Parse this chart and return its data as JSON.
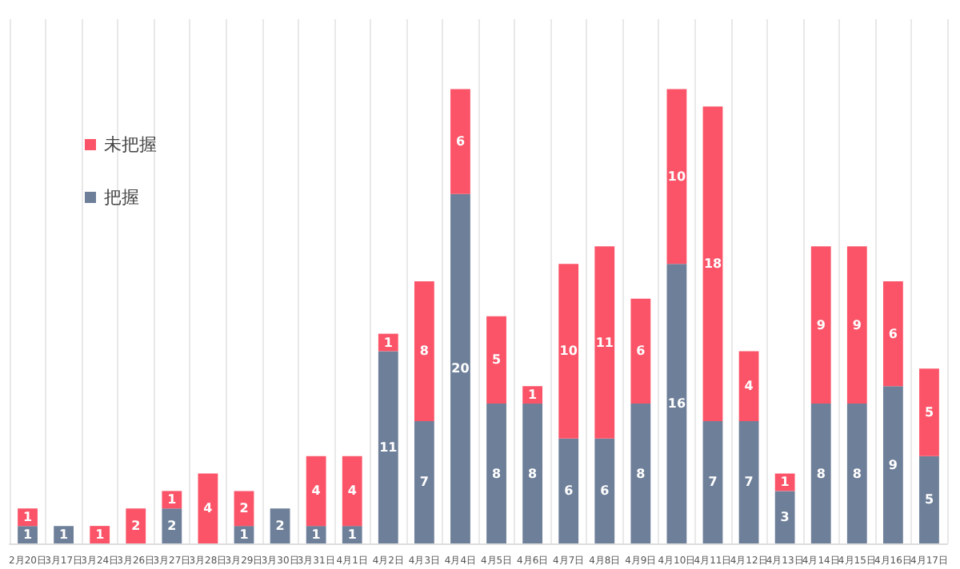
{
  "chart_data": {
    "type": "bar",
    "stacked": true,
    "data_labels": true,
    "grid": "x",
    "legend": "top left",
    "categories": [
      "2月20日",
      "3月17日",
      "3月24日",
      "3月26日",
      "3月27日",
      "3月28日",
      "3月29日",
      "3月30日",
      "3月31日",
      "4月1日",
      "4月2日",
      "4月3日",
      "4月4日",
      "4月5日",
      "4月6日",
      "4月7日",
      "4月8日",
      "4月9日",
      "4月10日",
      "4月11日",
      "4月12日",
      "4月13日",
      "4月14日",
      "4月15日",
      "4月16日",
      "4月17日"
    ],
    "series": [
      {
        "name": "把握",
        "color": "#6e7f99",
        "values": [
          1,
          1,
          null,
          null,
          2,
          null,
          1,
          2,
          1,
          1,
          11,
          7,
          20,
          8,
          8,
          6,
          6,
          8,
          16,
          7,
          7,
          3,
          8,
          8,
          9,
          5
        ]
      },
      {
        "name": "未把握",
        "color": "#fb5468",
        "values": [
          1,
          null,
          1,
          2,
          1,
          4,
          2,
          null,
          4,
          4,
          1,
          8,
          6,
          5,
          1,
          10,
          11,
          6,
          10,
          18,
          4,
          1,
          9,
          9,
          6,
          5
        ]
      }
    ]
  }
}
